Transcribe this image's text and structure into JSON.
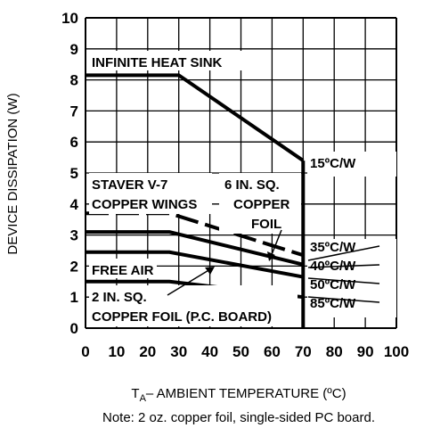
{
  "chart_data": {
    "type": "line",
    "title": "",
    "xlabel_prefix": "T",
    "xlabel_sub": "A",
    "xlabel_rest": "– AMBIENT TEMPERATURE (ºC)",
    "ylabel": "DEVICE DISSIPATION (W)",
    "note": "Note: 2 oz. copper foil, single-sided PC board.",
    "xlim": [
      0,
      100
    ],
    "ylim": [
      0,
      10
    ],
    "grid": true,
    "x_ticks": [
      0,
      10,
      20,
      30,
      40,
      50,
      60,
      70,
      80,
      90,
      100
    ],
    "y_ticks": [
      0,
      1,
      2,
      3,
      4,
      5,
      6,
      7,
      8,
      9,
      10
    ],
    "series": [
      {
        "name": "INFINITE HEAT SINK",
        "rating": "15ºC/W",
        "x": [
          0,
          30,
          70
        ],
        "y": [
          8.15,
          8.15,
          5.4
        ]
      },
      {
        "name": "STAVER V-7 COPPER WINGS",
        "rating": "35ºC/W",
        "x": [
          0,
          27,
          70
        ],
        "y": [
          3.7,
          3.7,
          2.35
        ]
      },
      {
        "name": "6 IN. SQ. COPPER FOIL",
        "rating": "40ºC/W",
        "x": [
          0,
          27,
          70
        ],
        "y": [
          3.1,
          3.1,
          2.05
        ]
      },
      {
        "name": "FREE AIR",
        "rating": "50ºC/W",
        "x": [
          0,
          27,
          70
        ],
        "y": [
          2.45,
          2.45,
          1.65
        ]
      },
      {
        "name": "2 IN. SQ. COPPER FOIL (P.C. BOARD)",
        "rating": "85ºC/W",
        "x": [
          0,
          27,
          70
        ],
        "y": [
          1.5,
          1.5,
          1.0
        ]
      }
    ],
    "annotations": {
      "infinite": "INFINITE HEAT SINK",
      "staver_1": "STAVER V-7",
      "staver_2": "COPPER WINGS",
      "foil6_1": "6 IN. SQ.",
      "foil6_2": "COPPER",
      "foil6_3": "FOIL",
      "freeair": "FREE AIR",
      "foil2_1": "2 IN. SQ.",
      "foil2_2": "COPPER FOIL (P.C. BOARD)",
      "r15": "15ºC/W",
      "r35": "35ºC/W",
      "r40": "40ºC/W",
      "r50": "50ºC/W",
      "r85": "85ºC/W"
    }
  }
}
